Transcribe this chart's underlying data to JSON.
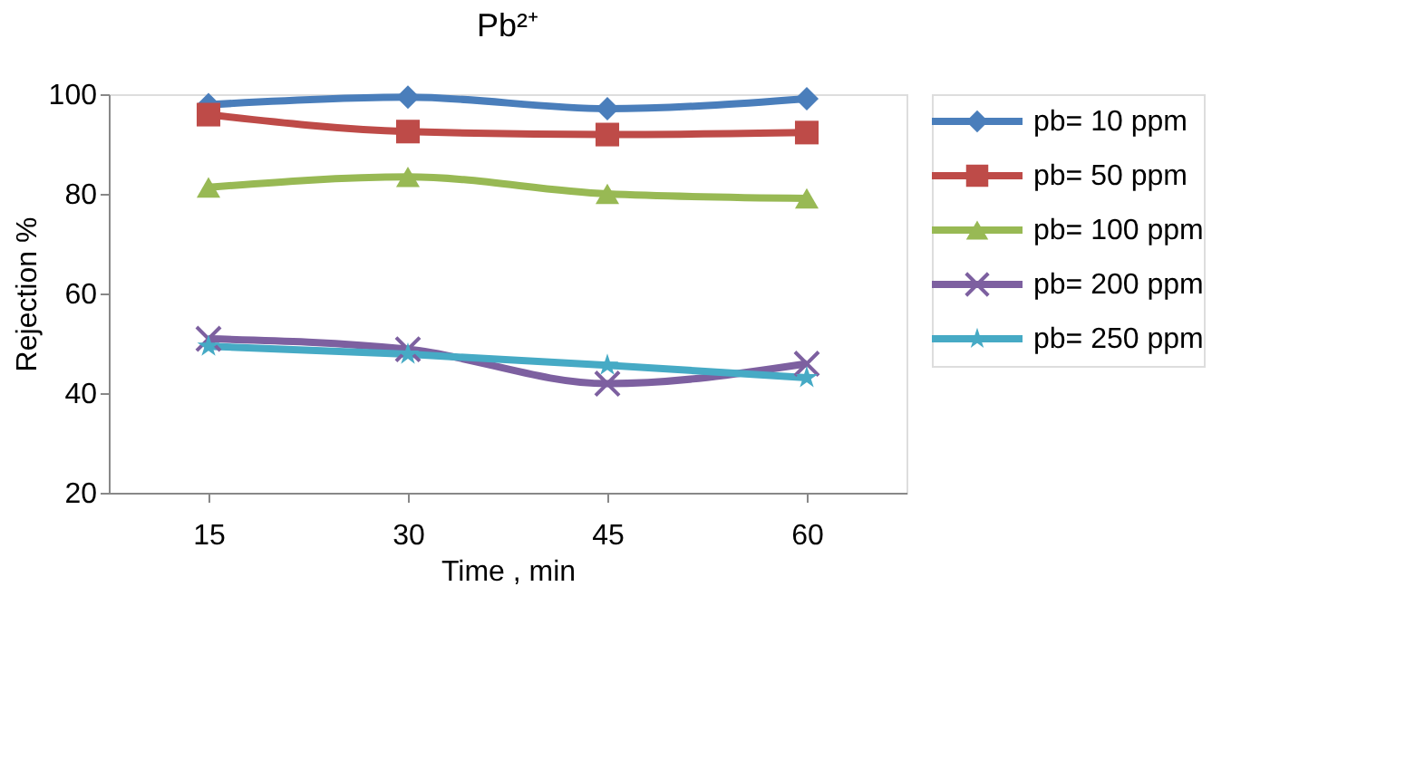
{
  "chart_data": {
    "type": "line",
    "title": "Pb²⁺",
    "xlabel": "Time , min",
    "ylabel": "Rejection %",
    "categories": [
      "15",
      "30",
      "45",
      "60"
    ],
    "ylim": [
      20,
      100
    ],
    "yticks": [
      20,
      40,
      60,
      80,
      100
    ],
    "grid": false,
    "legend": "top right",
    "line_style": "solid",
    "series": [
      {
        "name": "pb= 10 ppm",
        "color": "#4a7ebb",
        "marker": "diamond",
        "values": [
          97.9,
          99.4,
          97.1,
          99.1
        ]
      },
      {
        "name": "pb= 50 ppm",
        "color": "#be4b48",
        "marker": "square",
        "values": [
          95.9,
          92.5,
          91.9,
          92.3
        ]
      },
      {
        "name": "pb= 100 ppm",
        "color": "#98b954",
        "marker": "triangle",
        "values": [
          81.3,
          83.4,
          80.0,
          79.1
        ]
      },
      {
        "name": "pb= 200 ppm",
        "color": "#7d60a0",
        "marker": "cross",
        "values": [
          50.9,
          48.8,
          41.9,
          45.9
        ]
      },
      {
        "name": "pb= 250 ppm",
        "color": "#46aac5",
        "marker": "star",
        "values": [
          49.4,
          47.8,
          45.6,
          43.1
        ]
      }
    ]
  }
}
